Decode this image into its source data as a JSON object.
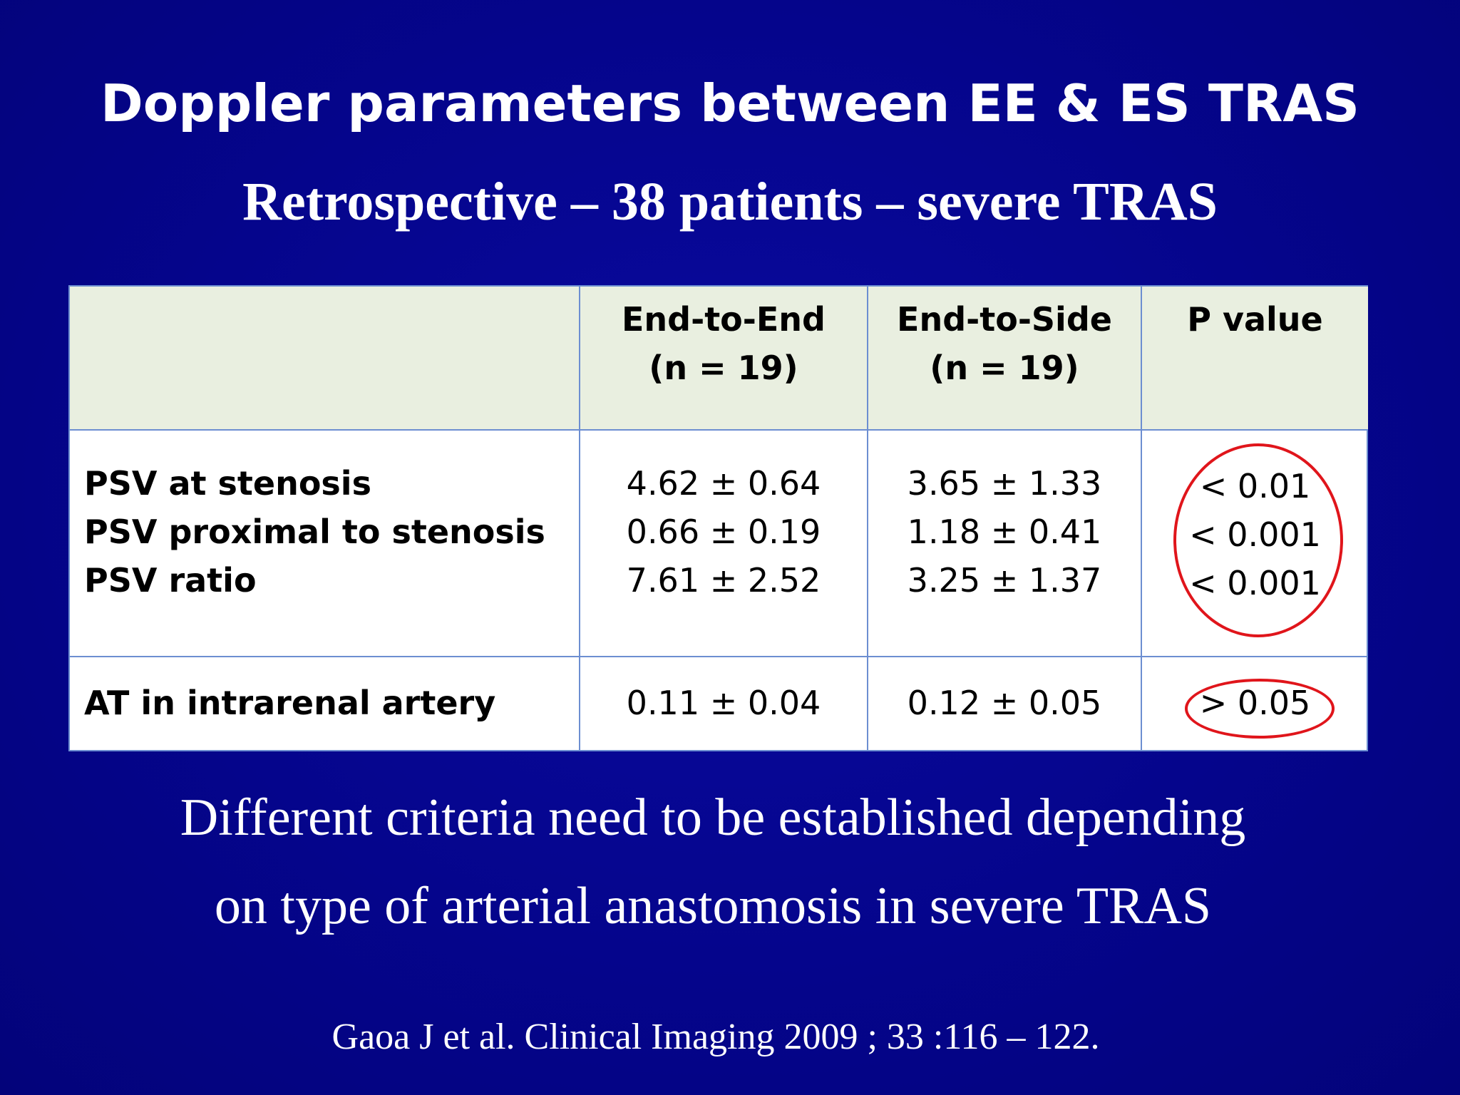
{
  "slide": {
    "title": "Doppler parameters between EE & ES TRAS",
    "subtitle": "Retrospective – 38 patients – severe TRAS"
  },
  "table": {
    "headers": [
      {
        "line1": "",
        "line2": ""
      },
      {
        "line1": "End-to-End",
        "line2": "(n = 19)"
      },
      {
        "line1": "End-to-Side",
        "line2": "(n = 19)"
      },
      {
        "line1": "P value",
        "line2": ""
      }
    ],
    "group1": {
      "labels": [
        "PSV at stenosis",
        "PSV proximal to stenosis",
        "PSV ratio"
      ],
      "end_to_end": [
        "4.62 ± 0.64",
        "0.66 ± 0.19",
        "7.61 ± 2.52"
      ],
      "end_to_side": [
        "3.65 ± 1.33",
        "1.18 ± 0.41",
        "3.25 ± 1.37"
      ],
      "p_values": [
        "< 0.01",
        "< 0.001",
        "< 0.001"
      ]
    },
    "group2": {
      "label": "AT in intrarenal artery",
      "end_to_end": "0.11 ± 0.04",
      "end_to_side": "0.12 ± 0.05",
      "p_value": "> 0.05"
    }
  },
  "conclusion": {
    "line1": "Different criteria need to be established depending",
    "line2": "on type of arterial anastomosis in severe TRAS"
  },
  "citation": "Gaoa J et al. Clinical Imaging 2009 ; 33 :116 – 122.",
  "colors": {
    "background": "#06068f",
    "header_fill": "#e9efe0",
    "grid_line": "#6c8ed1",
    "highlight_circle": "#e0151b",
    "text_light": "#ffffff"
  }
}
